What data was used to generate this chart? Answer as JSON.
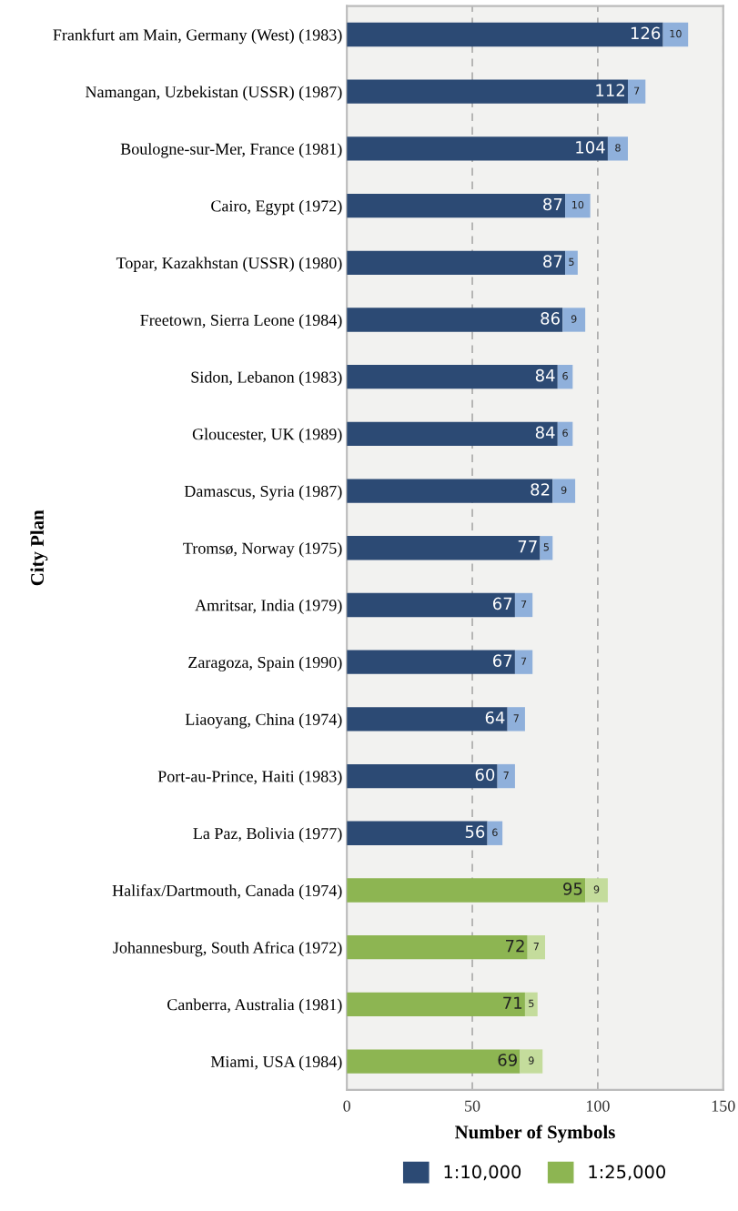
{
  "chart_data": {
    "type": "bar",
    "orientation": "horizontal",
    "stacked": true,
    "xlabel": "Number of Symbols",
    "ylabel": "City Plan",
    "categories": [
      "Frankfurt am Main, Germany (West) (1983)",
      "Namangan, Uzbekistan (USSR) (1987)",
      "Boulogne-sur-Mer, France (1981)",
      "Cairo, Egypt (1972)",
      "Topar, Kazakhstan (USSR) (1980)",
      "Freetown, Sierra Leone (1984)",
      "Sidon, Lebanon (1983)",
      "Gloucester, UK (1989)",
      "Damascus, Syria (1987)",
      "Tromsø, Norway (1975)",
      "Amritsar, India (1979)",
      "Zaragoza, Spain (1990)",
      "Liaoyang, China (1974)",
      "Port-au-Prince, Haiti (1983)",
      "La Paz, Bolivia (1977)",
      "Halifax/Dartmouth, Canada (1974)",
      "Johannesburg, South Africa (1972)",
      "Canberra, Australia (1981)",
      "Miami, USA (1984)"
    ],
    "series": [
      {
        "name": "1:10,000",
        "color": "#2c4a74",
        "values": [
          126,
          112,
          104,
          87,
          87,
          86,
          84,
          84,
          82,
          77,
          67,
          67,
          64,
          60,
          56,
          null,
          null,
          null,
          null
        ]
      },
      {
        "color": "#8fb0db",
        "values": [
          10,
          7,
          8,
          10,
          5,
          9,
          6,
          6,
          9,
          5,
          7,
          7,
          7,
          7,
          6,
          null,
          null,
          null,
          null
        ]
      },
      {
        "name": "1:25,000",
        "color": "#8db552",
        "values": [
          null,
          null,
          null,
          null,
          null,
          null,
          null,
          null,
          null,
          null,
          null,
          null,
          null,
          null,
          null,
          95,
          72,
          71,
          69
        ]
      },
      {
        "color": "#c4dc9c",
        "values": [
          null,
          null,
          null,
          null,
          null,
          null,
          null,
          null,
          null,
          null,
          null,
          null,
          null,
          null,
          null,
          9,
          7,
          5,
          9
        ]
      }
    ],
    "xlim": [
      0,
      150
    ],
    "xticks": [
      0,
      50,
      100,
      150
    ],
    "grid": "x",
    "legend": "bottom",
    "data_labels": true
  }
}
